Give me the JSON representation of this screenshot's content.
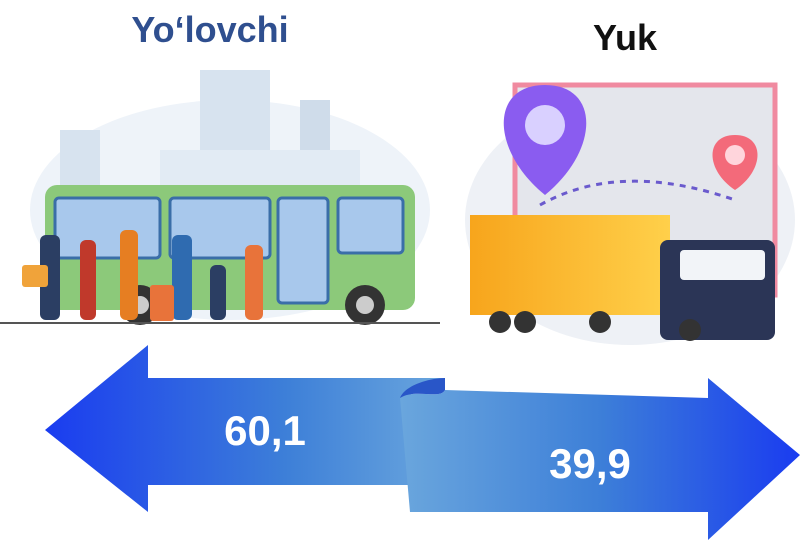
{
  "left": {
    "title": "Yo‘lovchi",
    "value": "60,1"
  },
  "right": {
    "title": "Yuk",
    "value": "39,9"
  }
}
